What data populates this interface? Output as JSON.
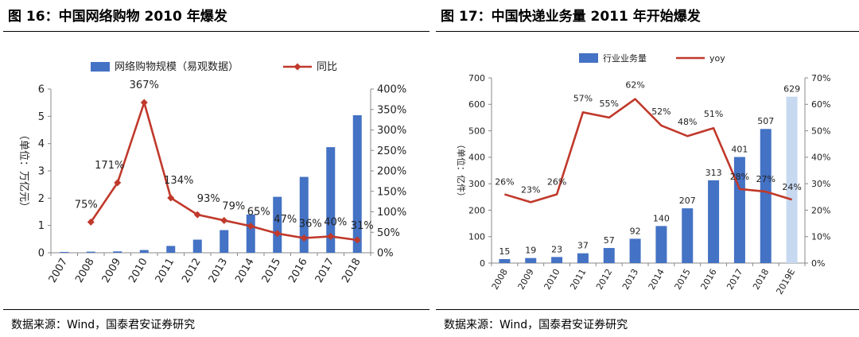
{
  "charts": [
    {
      "figure_title": "图 16：中国网络购物 2010 年爆发",
      "source": "数据来源：Wind，国泰君安证券研究",
      "y_left_label": "（单位：万亿元）",
      "legend_bar": "网络购物规模（易观数据）",
      "legend_line": "同比"
    },
    {
      "figure_title": "图 17：中国快递业务量 2011 年开始爆发",
      "source": "数据来源：Wind，国泰君安证券研究",
      "y_left_label": "（单位：亿件）",
      "legend_bar": "行业业务量",
      "legend_line": "yoy"
    }
  ],
  "chart_data": [
    {
      "type": "bar",
      "title": "中国网络购物 2010 年爆发",
      "categories": [
        "2007",
        "2008",
        "2009",
        "2010",
        "2011",
        "2012",
        "2013",
        "2014",
        "2015",
        "2016",
        "2017",
        "2018"
      ],
      "series": [
        {
          "name": "网络购物规模（易观数据）",
          "type": "bar",
          "axis": "left",
          "values": [
            0.03,
            0.04,
            0.05,
            0.1,
            0.25,
            0.48,
            0.83,
            1.4,
            2.05,
            2.78,
            3.87,
            5.04
          ]
        },
        {
          "name": "同比",
          "type": "line",
          "axis": "right",
          "values": [
            null,
            75,
            171,
            367,
            134,
            93,
            79,
            65,
            47,
            36,
            40,
            31
          ],
          "labels": [
            "",
            "75%",
            "171%",
            "367%",
            "134%",
            "93%",
            "79%",
            "65%",
            "47%",
            "36%",
            "40%",
            "31%"
          ]
        }
      ],
      "ylabel": "（单位：万亿元）",
      "ylim": [
        0,
        6
      ],
      "y_ticks": [
        "0",
        "1",
        "2",
        "3",
        "4",
        "5",
        "6"
      ],
      "y2lim": [
        0,
        400
      ],
      "y2_ticks": [
        "0%",
        "50%",
        "100%",
        "150%",
        "200%",
        "250%",
        "300%",
        "350%",
        "400%"
      ],
      "bar_color": "#4472c4",
      "line_color": "#c0392b",
      "legend": "top"
    },
    {
      "type": "bar",
      "title": "中国快递业务量 2011 年开始爆发",
      "categories": [
        "2008",
        "2009",
        "2010",
        "2011",
        "2012",
        "2013",
        "2014",
        "2015",
        "2016",
        "2017",
        "2018",
        "2019E"
      ],
      "series": [
        {
          "name": "行业业务量",
          "type": "bar",
          "axis": "left",
          "values": [
            15,
            19,
            23,
            37,
            57,
            92,
            140,
            207,
            313,
            401,
            507,
            629
          ],
          "labels": [
            "15",
            "19",
            "23",
            "37",
            "57",
            "92",
            "140",
            "207",
            "313",
            "401",
            "507",
            "629"
          ]
        },
        {
          "name": "yoy",
          "type": "line",
          "axis": "right",
          "values": [
            26,
            23,
            26,
            57,
            55,
            62,
            52,
            48,
            51,
            28,
            27,
            24
          ],
          "labels": [
            "26%",
            "23%",
            "26%",
            "57%",
            "55%",
            "62%",
            "52%",
            "48%",
            "51%",
            "28%",
            "27%",
            "24%"
          ]
        }
      ],
      "ylabel": "（单位：亿件）",
      "ylim": [
        0,
        700
      ],
      "y_ticks": [
        "0",
        "100",
        "200",
        "300",
        "400",
        "500",
        "600",
        "700"
      ],
      "y2lim": [
        0,
        70
      ],
      "y2_ticks": [
        "0%",
        "10%",
        "20%",
        "30%",
        "40%",
        "50%",
        "60%",
        "70%"
      ],
      "bar_color": "#4472c4",
      "estimate_bar_color": "#c6d9f1",
      "line_color": "#c0392b",
      "legend": "top"
    }
  ]
}
